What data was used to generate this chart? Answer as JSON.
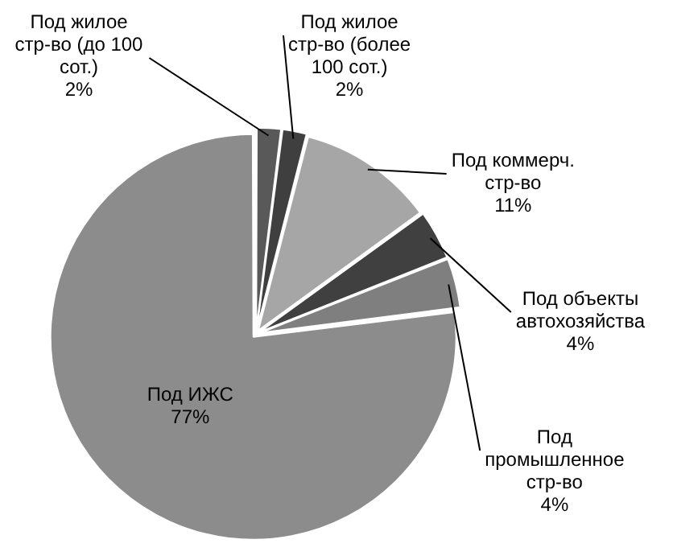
{
  "chart_data": {
    "type": "pie",
    "categories": [
      "Под жилое стр-во (до 100 сот.)",
      "Под жилое стр-во (более 100 сот.)",
      "Под коммерч. стр-во",
      "Под объекты автохозяйства",
      "Под промышленное стр-во",
      "Под ИЖС"
    ],
    "values": [
      2,
      2,
      11,
      4,
      4,
      77
    ],
    "value_labels": [
      "2%",
      "2%",
      "11%",
      "4%",
      "4%",
      "77%"
    ],
    "colors": [
      "#595959",
      "#3f3f3f",
      "#a6a6a6",
      "#404040",
      "#7f7f7f",
      "#8c8c8c"
    ],
    "legend": false
  }
}
